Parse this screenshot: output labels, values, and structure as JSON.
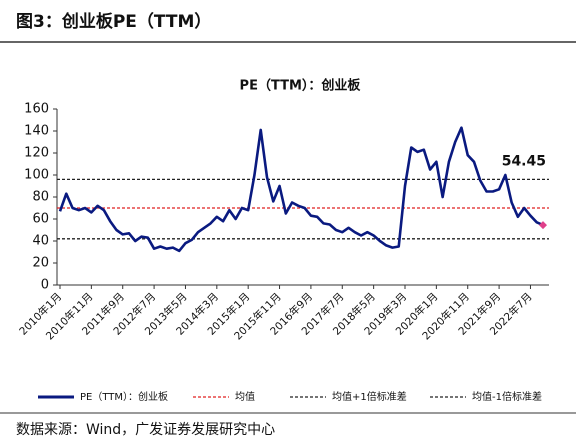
{
  "header": {
    "title": "图3：创业板PE（TTM）"
  },
  "chart_data": {
    "type": "line",
    "title": "PE（TTM）：创业板",
    "categories": [
      "2010年1月",
      null,
      null,
      null,
      null,
      "2010年11月",
      null,
      null,
      null,
      null,
      "2011年9月",
      null,
      null,
      null,
      null,
      "2012年7月",
      null,
      null,
      null,
      null,
      "2013年5月",
      null,
      null,
      null,
      null,
      "2014年3月",
      null,
      null,
      null,
      null,
      "2015年1月",
      null,
      null,
      null,
      null,
      "2015年11月",
      null,
      null,
      null,
      null,
      "2016年9月",
      null,
      null,
      null,
      null,
      "2017年7月",
      null,
      null,
      null,
      null,
      "2018年5月",
      null,
      null,
      null,
      null,
      "2019年3月",
      null,
      null,
      null,
      null,
      "2020年1月",
      null,
      null,
      null,
      null,
      "2020年11月",
      null,
      null,
      null,
      null,
      "2021年9月",
      null,
      null,
      null,
      null,
      "2022年7月",
      null,
      null
    ],
    "series": [
      {
        "name": "PE（TTM）：创业板",
        "color": "#0a1a80",
        "values": [
          67,
          83,
          70,
          68,
          70,
          66,
          72,
          68,
          58,
          50,
          46,
          47,
          40,
          44,
          43,
          33,
          35,
          33,
          34,
          31,
          38,
          41,
          48,
          52,
          56,
          62,
          58,
          68,
          60,
          70,
          68,
          100,
          141,
          98,
          76,
          90,
          65,
          75,
          72,
          70,
          63,
          62,
          56,
          55,
          50,
          48,
          52,
          48,
          45,
          48,
          45,
          40,
          36,
          34,
          35,
          90,
          125,
          121,
          123,
          105,
          112,
          80,
          112,
          130,
          143,
          118,
          112,
          95,
          85,
          85,
          87,
          100,
          75,
          62,
          70,
          63,
          57,
          54.45
        ]
      }
    ],
    "reference_lines": [
      {
        "name": "均值",
        "value": 70,
        "color": "#e02020"
      },
      {
        "name": "均值+1倍标准差",
        "value": 96,
        "color": "#222222"
      },
      {
        "name": "均值-1倍标准差",
        "value": 42,
        "color": "#222222"
      }
    ],
    "ylim": [
      0,
      160
    ],
    "yticks": [
      0,
      20,
      40,
      60,
      80,
      100,
      120,
      140,
      160
    ],
    "grid": false,
    "label_color": "#e02020",
    "marker_color": "#e0408a"
  },
  "footer": {
    "source": "数据来源：Wind，广发证券发展研究中心"
  }
}
